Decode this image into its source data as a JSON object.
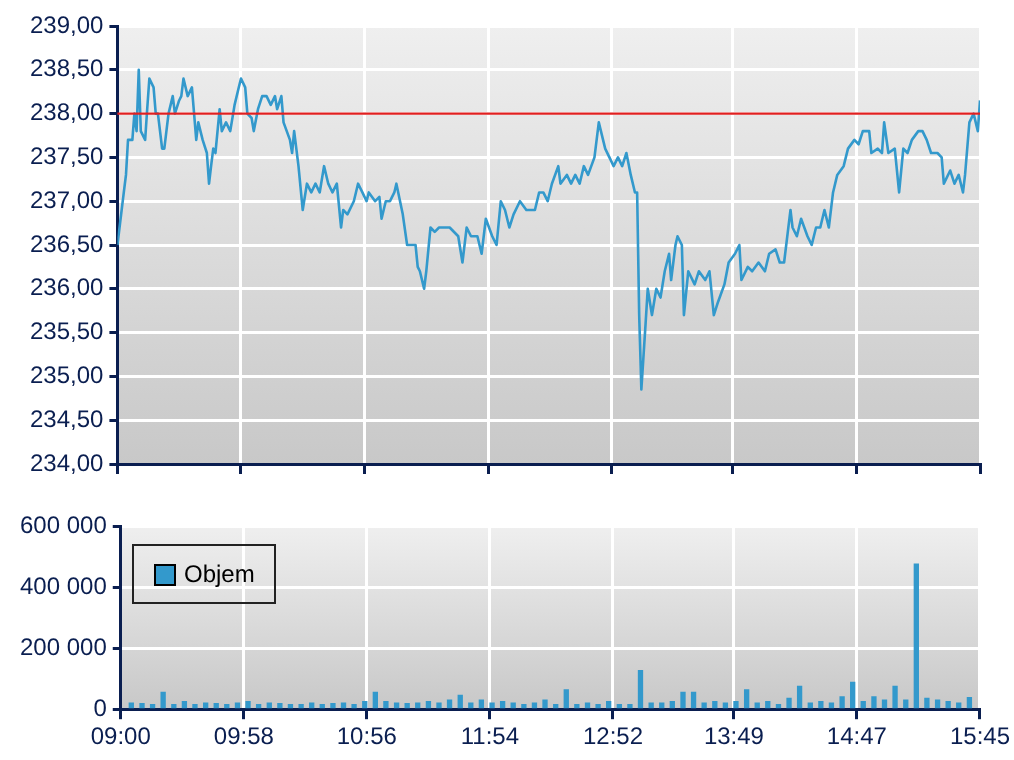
{
  "chart_data": [
    {
      "type": "line",
      "xlim": [
        9,
        15.75
      ],
      "xticks": [
        {
          "value": 9,
          "label": null
        },
        {
          "value": 9.967,
          "label": null
        },
        {
          "value": 10.933,
          "label": null
        },
        {
          "value": 11.9,
          "label": null
        },
        {
          "value": 12.867,
          "label": null
        },
        {
          "value": 13.817,
          "label": null
        },
        {
          "value": 14.783,
          "label": null
        },
        {
          "value": 15.75,
          "label": null
        }
      ],
      "ylim": [
        234,
        239
      ],
      "yticks": [
        {
          "value": 234,
          "label": "234,00"
        },
        {
          "value": 234.5,
          "label": "234,50"
        },
        {
          "value": 235,
          "label": "235,00"
        },
        {
          "value": 235.5,
          "label": "235,50"
        },
        {
          "value": 236,
          "label": "236,00"
        },
        {
          "value": 236.5,
          "label": "236,50"
        },
        {
          "value": 237,
          "label": "237,00"
        },
        {
          "value": 237.5,
          "label": "237,50"
        },
        {
          "value": 238,
          "label": "238,00"
        },
        {
          "value": 238.5,
          "label": "238,50"
        },
        {
          "value": 239,
          "label": "239,00"
        }
      ],
      "tick_labels": "y",
      "grid": true,
      "legend": false,
      "ref_lines": [
        {
          "axis": "y",
          "value": 238,
          "color": "#e02020"
        }
      ],
      "x": [
        9,
        9.05,
        9.067,
        9.083,
        9.117,
        9.133,
        9.15,
        9.167,
        9.183,
        9.217,
        9.233,
        9.25,
        9.283,
        9.3,
        9.317,
        9.35,
        9.367,
        9.4,
        9.433,
        9.45,
        9.483,
        9.5,
        9.517,
        9.55,
        9.583,
        9.6,
        9.617,
        9.633,
        9.667,
        9.7,
        9.717,
        9.733,
        9.75,
        9.767,
        9.8,
        9.817,
        9.85,
        9.883,
        9.917,
        9.95,
        9.967,
        10,
        10.017,
        10.05,
        10.067,
        10.1,
        10.133,
        10.167,
        10.2,
        10.233,
        10.25,
        10.283,
        10.3,
        10.35,
        10.367,
        10.383,
        10.417,
        10.45,
        10.483,
        10.517,
        10.55,
        10.583,
        10.617,
        10.65,
        10.683,
        10.717,
        10.75,
        10.767,
        10.8,
        10.85,
        10.883,
        10.917,
        10.95,
        10.967,
        11.017,
        11.05,
        11.067,
        11.1,
        11.133,
        11.167,
        11.183,
        11.233,
        11.267,
        11.333,
        11.35,
        11.367,
        11.4,
        11.417,
        11.45,
        11.483,
        11.517,
        11.6,
        11.667,
        11.7,
        11.733,
        11.767,
        11.817,
        11.85,
        11.883,
        11.933,
        11.967,
        12,
        12.033,
        12.067,
        12.1,
        12.15,
        12.2,
        12.267,
        12.3,
        12.333,
        12.367,
        12.4,
        12.45,
        12.467,
        12.517,
        12.55,
        12.583,
        12.617,
        12.65,
        12.683,
        12.733,
        12.767,
        12.817,
        12.85,
        12.883,
        12.917,
        12.95,
        12.983,
        13.017,
        13.05,
        13.067,
        13.083,
        13.1,
        13.133,
        13.15,
        13.183,
        13.217,
        13.25,
        13.283,
        13.317,
        13.333,
        13.367,
        13.383,
        13.417,
        13.433,
        13.467,
        13.517,
        13.55,
        13.6,
        13.633,
        13.667,
        13.7,
        13.75,
        13.783,
        13.833,
        13.867,
        13.883,
        13.933,
        13.967,
        14.017,
        14.067,
        14.1,
        14.15,
        14.183,
        14.217,
        14.267,
        14.283,
        14.317,
        14.35,
        14.4,
        14.433,
        14.467,
        14.5,
        14.533,
        14.567,
        14.6,
        14.633,
        14.683,
        14.717,
        14.767,
        14.8,
        14.833,
        14.883,
        14.9,
        14.95,
        14.983,
        15,
        15.033,
        15.083,
        15.117,
        15.15,
        15.183,
        15.217,
        15.267,
        15.3,
        15.333,
        15.367,
        15.417,
        15.45,
        15.467,
        15.517,
        15.55,
        15.583,
        15.617,
        15.633,
        15.667,
        15.7,
        15.733,
        15.75
      ],
      "series": [
        {
          "color": "#3399cc",
          "values": [
            236.5,
            237.1,
            237.3,
            237.7,
            237.7,
            238.0,
            237.8,
            238.5,
            237.8,
            237.7,
            238.05,
            238.4,
            238.3,
            238.0,
            238.0,
            237.6,
            237.6,
            238.0,
            238.2,
            238.0,
            238.15,
            238.2,
            238.4,
            238.2,
            238.3,
            238.0,
            237.7,
            237.9,
            237.7,
            237.55,
            237.2,
            237.4,
            237.6,
            237.55,
            238.05,
            237.8,
            237.9,
            237.8,
            238.1,
            238.3,
            238.4,
            238.3,
            238.0,
            237.95,
            237.8,
            238.05,
            238.2,
            238.2,
            238.1,
            238.2,
            238.05,
            238.2,
            237.9,
            237.7,
            237.55,
            237.8,
            237.4,
            236.9,
            237.2,
            237.1,
            237.2,
            237.1,
            237.4,
            237.2,
            237.1,
            237.2,
            236.7,
            236.9,
            236.85,
            237.0,
            237.2,
            237.1,
            237.0,
            237.1,
            237.0,
            237.05,
            236.8,
            237.0,
            237.0,
            237.1,
            237.2,
            236.85,
            236.5,
            236.5,
            236.25,
            236.2,
            236.0,
            236.2,
            236.7,
            236.65,
            236.7,
            236.7,
            236.6,
            236.3,
            236.7,
            236.6,
            236.6,
            236.4,
            236.8,
            236.6,
            236.5,
            237.0,
            236.9,
            236.7,
            236.85,
            237.0,
            236.9,
            236.9,
            237.1,
            237.1,
            237.0,
            237.2,
            237.4,
            237.2,
            237.3,
            237.2,
            237.3,
            237.2,
            237.4,
            237.3,
            237.5,
            237.9,
            237.6,
            237.5,
            237.4,
            237.5,
            237.4,
            237.55,
            237.3,
            237.1,
            237.1,
            235.7,
            234.85,
            235.6,
            236.0,
            235.7,
            236.0,
            235.9,
            236.2,
            236.4,
            236.1,
            236.5,
            236.6,
            236.5,
            235.7,
            236.2,
            236.05,
            236.2,
            236.1,
            236.2,
            235.7,
            235.85,
            236.05,
            236.3,
            236.4,
            236.5,
            236.1,
            236.25,
            236.2,
            236.3,
            236.2,
            236.4,
            236.45,
            236.3,
            236.3,
            236.9,
            236.7,
            236.6,
            236.8,
            236.6,
            236.5,
            236.7,
            236.7,
            236.9,
            236.7,
            237.1,
            237.3,
            237.4,
            237.6,
            237.7,
            237.65,
            237.8,
            237.8,
            237.55,
            237.6,
            237.55,
            237.9,
            237.55,
            237.6,
            237.1,
            237.6,
            237.55,
            237.7,
            237.8,
            237.8,
            237.7,
            237.55,
            237.55,
            237.5,
            237.2,
            237.35,
            237.2,
            237.3,
            237.1,
            237.3,
            237.9,
            238.0,
            237.8,
            238.15
          ]
        }
      ]
    },
    {
      "type": "bar",
      "xlim": [
        9,
        15.75
      ],
      "xticks": [
        {
          "value": 9,
          "label": "09:00"
        },
        {
          "value": 9.967,
          "label": "09:58"
        },
        {
          "value": 10.933,
          "label": "10:56"
        },
        {
          "value": 11.9,
          "label": "11:54"
        },
        {
          "value": 12.867,
          "label": "12:52"
        },
        {
          "value": 13.817,
          "label": "13:49"
        },
        {
          "value": 14.783,
          "label": "14:47"
        },
        {
          "value": 15.75,
          "label": "15:45"
        }
      ],
      "ylim": [
        0,
        600000
      ],
      "yticks": [
        {
          "value": 0,
          "label": "0"
        },
        {
          "value": 200000,
          "label": "200 000"
        },
        {
          "value": 400000,
          "label": "400 000"
        },
        {
          "value": 600000,
          "label": "600 000"
        }
      ],
      "grid": true,
      "legend": "top left",
      "x": [
        9.083,
        9.167,
        9.25,
        9.333,
        9.417,
        9.5,
        9.583,
        9.667,
        9.75,
        9.833,
        9.917,
        10,
        10.083,
        10.167,
        10.25,
        10.333,
        10.417,
        10.5,
        10.583,
        10.667,
        10.75,
        10.833,
        10.917,
        11,
        11.083,
        11.167,
        11.25,
        11.333,
        11.417,
        11.5,
        11.583,
        11.667,
        11.75,
        11.833,
        11.917,
        12,
        12.083,
        12.167,
        12.25,
        12.333,
        12.417,
        12.5,
        12.583,
        12.667,
        12.75,
        12.833,
        12.917,
        13,
        13.083,
        13.167,
        13.25,
        13.333,
        13.417,
        13.5,
        13.583,
        13.667,
        13.75,
        13.833,
        13.917,
        14,
        14.083,
        14.167,
        14.25,
        14.333,
        14.417,
        14.5,
        14.583,
        14.667,
        14.75,
        14.833,
        14.917,
        15,
        15.083,
        15.167,
        15.25,
        15.333,
        15.417,
        15.5,
        15.583,
        15.667
      ],
      "series": [
        {
          "name": "Objem",
          "color": "#3399cc",
          "values": [
            20000,
            18000,
            15000,
            55000,
            15000,
            25000,
            15000,
            20000,
            18000,
            15000,
            20000,
            25000,
            15000,
            20000,
            18000,
            15000,
            15000,
            20000,
            15000,
            18000,
            20000,
            15000,
            25000,
            55000,
            25000,
            20000,
            18000,
            20000,
            25000,
            20000,
            30000,
            45000,
            20000,
            30000,
            20000,
            25000,
            20000,
            15000,
            20000,
            30000,
            15000,
            63000,
            15000,
            20000,
            15000,
            25000,
            15000,
            15000,
            126000,
            20000,
            20000,
            25000,
            55000,
            55000,
            20000,
            25000,
            20000,
            25000,
            63000,
            20000,
            25000,
            15000,
            35000,
            75000,
            20000,
            25000,
            20000,
            40000,
            88000,
            25000,
            40000,
            30000,
            75000,
            30000,
            475000,
            35000,
            30000,
            25000,
            20000,
            38000
          ]
        }
      ]
    }
  ]
}
